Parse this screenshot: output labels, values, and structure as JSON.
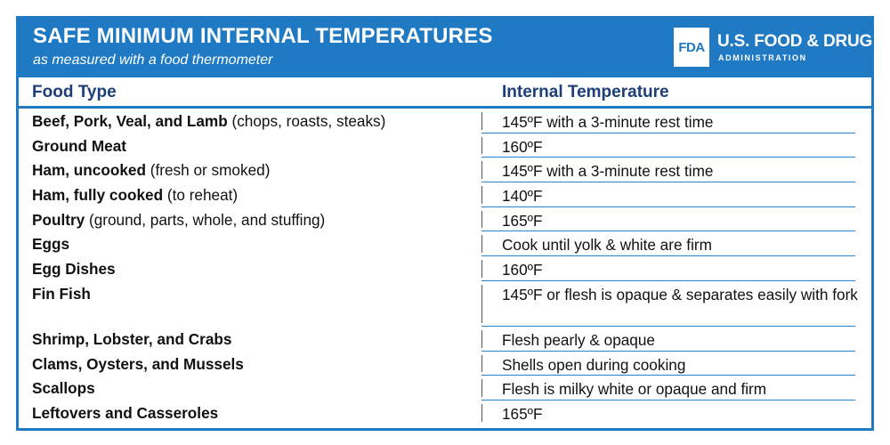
{
  "header": {
    "title": "SAFE MINIMUM INTERNAL TEMPERATURES",
    "subtitle": "as measured with a food thermometer",
    "logo_mark": "FDA",
    "logo_name": "U.S. FOOD & DRUG",
    "logo_sub": "ADMINISTRATION",
    "accent_color": "#1f7ac3"
  },
  "table": {
    "headers": [
      "Food Type",
      "Internal Temperature"
    ],
    "rows": [
      {
        "name": "Beef, Pork, Veal, and Lamb",
        "note": " (chops, roasts, steaks)",
        "temp": "145ºF with a 3-minute rest time"
      },
      {
        "name": "Ground Meat",
        "note": "",
        "temp": "160ºF"
      },
      {
        "name": "Ham, uncooked",
        "note": " (fresh or smoked)",
        "temp": "145ºF with a 3-minute rest time"
      },
      {
        "name": "Ham, fully cooked",
        "note": " (to reheat)",
        "temp": "140ºF"
      },
      {
        "name": "Poultry",
        "note": " (ground, parts, whole, and stuffing)",
        "temp": "165ºF"
      },
      {
        "name": "Eggs",
        "note": "",
        "temp": "Cook until yolk & white are firm"
      },
      {
        "name": "Egg Dishes",
        "note": "",
        "temp": "160ºF"
      },
      {
        "name": "Fin Fish",
        "note": "",
        "temp": "145ºF or flesh is opaque & separates easily with fork"
      },
      {
        "name": "Shrimp, Lobster, and Crabs",
        "note": "",
        "temp": "Flesh pearly & opaque"
      },
      {
        "name": "Clams, Oysters, and Mussels",
        "note": "",
        "temp": "Shells open during cooking"
      },
      {
        "name": "Scallops",
        "note": "",
        "temp": "Flesh is milky white or opaque and firm"
      },
      {
        "name": "Leftovers and Casseroles",
        "note": "",
        "temp": "165ºF"
      }
    ]
  }
}
